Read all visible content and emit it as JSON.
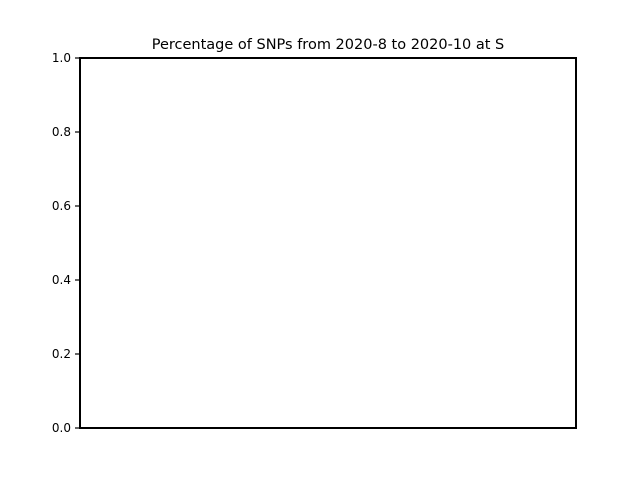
{
  "chart_data": {
    "type": "scatter",
    "title": "Percentage of SNPs from 2020-8 to 2020-10 at S",
    "xlabel": "",
    "ylabel": "",
    "ylim": [
      0.0,
      1.0
    ],
    "y_ticks": [
      0.0,
      0.2,
      0.4,
      0.6,
      0.8,
      1.0
    ],
    "y_tick_labels": [
      "0.0",
      "0.2",
      "0.4",
      "0.6",
      "0.8",
      "1.0"
    ],
    "x_ticks": [],
    "series": [],
    "grid": false,
    "legend": "none"
  },
  "colors": {
    "background": "#ffffff",
    "axes": "#000000",
    "text": "#000000"
  }
}
